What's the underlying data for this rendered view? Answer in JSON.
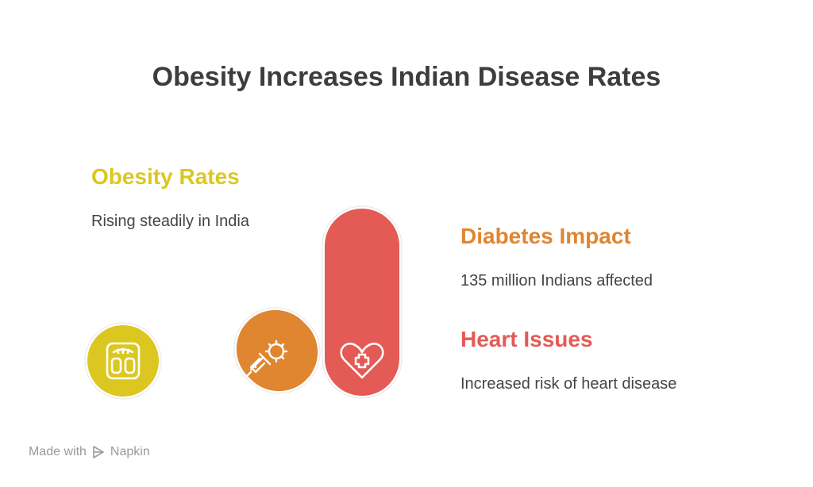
{
  "title": "Obesity Increases Indian Disease Rates",
  "items": [
    {
      "heading": "Obesity Rates",
      "description": "Rising steadily in India",
      "color": "#dcc720",
      "icon": "weighing-scale-icon"
    },
    {
      "heading": "Diabetes Impact",
      "description": "135 million Indians affected",
      "color": "#e08530",
      "icon": "syringe-virus-icon"
    },
    {
      "heading": "Heart Issues",
      "description": "Increased risk of heart disease",
      "color": "#e45a55",
      "icon": "heart-plus-icon"
    }
  ],
  "footer": {
    "prefix": "Made with",
    "brand": "Napkin",
    "icon": "napkin-logo-icon"
  }
}
